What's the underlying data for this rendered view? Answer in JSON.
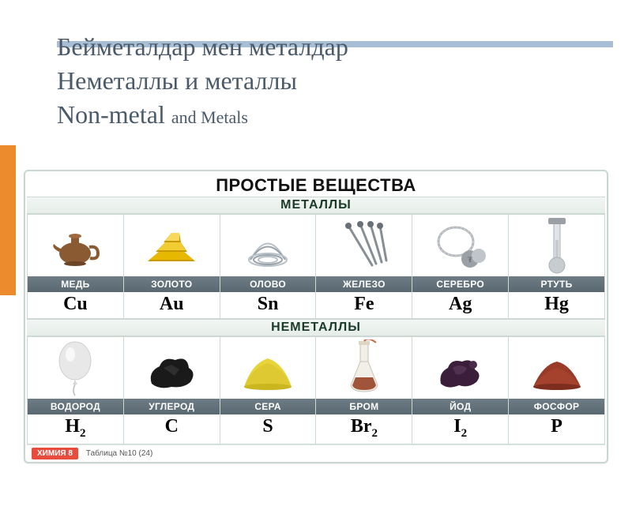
{
  "title": {
    "line1": "Бейметалдар мен металдар",
    "line2": "Неметаллы и металлы",
    "line3a": " Non-metal ",
    "line3b": "and Metals"
  },
  "colors": {
    "title_text": "#4a5a6a",
    "title_bar": "#a8bed4",
    "accent": "#ec8a2e",
    "cell_border": "#ccd8d2",
    "name_band_bg": "#596771",
    "footer_badge": "#e84c3d"
  },
  "chart": {
    "main_title": "ПРОСТЫЕ ВЕЩЕСТВА",
    "section1": "МЕТАЛЛЫ",
    "section2": "НЕМЕТАЛЛЫ",
    "footer_badge": "ХИМИЯ 8",
    "footer_text": "Таблица №10 (24)"
  },
  "metals": [
    {
      "name": "МЕДЬ",
      "symbol": "Cu",
      "icon": "teapot",
      "color": "#8a5a32"
    },
    {
      "name": "ЗОЛОТО",
      "symbol": "Au",
      "icon": "gold-bars",
      "color": "#e6b800"
    },
    {
      "name": "ОЛОВО",
      "symbol": "Sn",
      "icon": "wire-coil",
      "color": "#b8c0c8"
    },
    {
      "name": "ЖЕЛЕЗО",
      "symbol": "Fe",
      "icon": "nails",
      "color": "#888e95"
    },
    {
      "name": "СЕРЕБРО",
      "symbol": "Ag",
      "icon": "jewelry",
      "color": "#b5b9bd"
    },
    {
      "name": "РТУТЬ",
      "symbol": "Hg",
      "icon": "thermometer",
      "color": "#c7ccd1"
    }
  ],
  "nonmetals": [
    {
      "name": "ВОДОРОД",
      "symbol": "H",
      "sub": "2",
      "icon": "balloon",
      "color": "#e8e8e8"
    },
    {
      "name": "УГЛЕРОД",
      "symbol": "C",
      "sub": "",
      "icon": "coal",
      "color": "#1a1a1a"
    },
    {
      "name": "СЕРА",
      "symbol": "S",
      "sub": "",
      "icon": "sulfur-pile",
      "color": "#e8d43a"
    },
    {
      "name": "БРОМ",
      "symbol": "Br",
      "sub": "2",
      "icon": "flask",
      "color": "#a0543a"
    },
    {
      "name": "ЙОД",
      "symbol": "I",
      "sub": "2",
      "icon": "iodine",
      "color": "#3a1e3a"
    },
    {
      "name": "ФОСФОР",
      "symbol": "P",
      "sub": "",
      "icon": "powder-pile",
      "color": "#9a3a28"
    }
  ]
}
